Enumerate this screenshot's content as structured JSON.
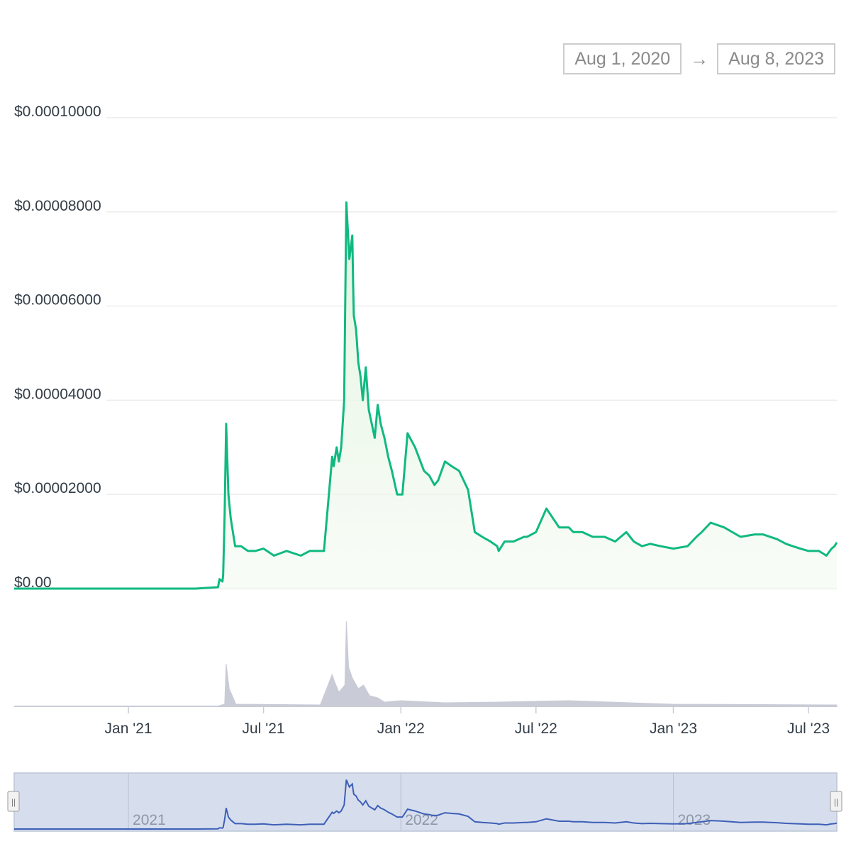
{
  "range": {
    "from": "Aug 1, 2020",
    "arrow": "→",
    "to": "Aug 8, 2023"
  },
  "colors": {
    "price_line": "#10b981",
    "price_fill": "#dff3dc",
    "volume": "#c9ccd6",
    "grid": "#ececec",
    "navigator_bg": "#d6deee",
    "navigator_line": "#3e5fb6"
  },
  "chart_data": {
    "type": "line",
    "y_axis": {
      "min": 0,
      "max": 0.0001,
      "ticks": [
        0,
        2e-05,
        4e-05,
        6e-05,
        8e-05,
        0.0001
      ],
      "tick_labels": [
        "$0.00",
        "$0.00002000",
        "$0.00004000",
        "$0.00006000",
        "$0.00008000",
        "$0.00010000"
      ]
    },
    "x_axis": {
      "range": [
        "2020-08-01",
        "2023-08-08"
      ],
      "ticks": [
        "2021-01-01",
        "2021-07-01",
        "2022-01-01",
        "2022-07-01",
        "2023-01-01",
        "2023-07-01"
      ],
      "tick_labels": [
        "Jan '21",
        "Jul '21",
        "Jan '22",
        "Jul '22",
        "Jan '23",
        "Jul '23"
      ]
    },
    "grid": true,
    "series": [
      {
        "type": "area",
        "x": [
          "2020-08-01",
          "2020-10-01",
          "2021-01-01",
          "2021-04-01",
          "2021-05-01",
          "2021-05-03",
          "2021-05-07",
          "2021-05-08",
          "2021-05-10",
          "2021-05-12",
          "2021-05-15",
          "2021-05-18",
          "2021-05-21",
          "2021-05-24",
          "2021-06-01",
          "2021-06-10",
          "2021-06-20",
          "2021-07-01",
          "2021-07-15",
          "2021-08-01",
          "2021-08-20",
          "2021-09-01",
          "2021-09-20",
          "2021-10-01",
          "2021-10-03",
          "2021-10-07",
          "2021-10-10",
          "2021-10-13",
          "2021-10-17",
          "2021-10-20",
          "2021-10-24",
          "2021-10-28",
          "2021-10-29",
          "2021-10-30",
          "2021-11-02",
          "2021-11-05",
          "2021-11-08",
          "2021-11-11",
          "2021-11-15",
          "2021-11-19",
          "2021-11-23",
          "2021-11-27",
          "2021-12-01",
          "2021-12-05",
          "2021-12-10",
          "2021-12-15",
          "2021-12-20",
          "2021-12-27",
          "2022-01-03",
          "2022-01-10",
          "2022-01-20",
          "2022-02-01",
          "2022-02-08",
          "2022-02-15",
          "2022-02-20",
          "2022-03-01",
          "2022-03-10",
          "2022-03-20",
          "2022-04-01",
          "2022-04-10",
          "2022-04-20",
          "2022-05-01",
          "2022-05-10",
          "2022-05-12",
          "2022-05-20",
          "2022-06-01",
          "2022-06-15",
          "2022-06-19",
          "2022-07-01",
          "2022-07-15",
          "2022-08-01",
          "2022-08-14",
          "2022-08-20",
          "2022-09-01",
          "2022-09-15",
          "2022-10-01",
          "2022-10-15",
          "2022-10-30",
          "2022-11-09",
          "2022-11-20",
          "2022-12-01",
          "2022-12-15",
          "2023-01-01",
          "2023-01-20",
          "2023-02-01",
          "2023-02-08",
          "2023-02-20",
          "2023-03-10",
          "2023-04-01",
          "2023-04-20",
          "2023-05-01",
          "2023-05-20",
          "2023-06-01",
          "2023-06-10",
          "2023-06-20",
          "2023-07-01",
          "2023-07-15",
          "2023-07-25",
          "2023-08-01",
          "2023-08-05",
          "2023-08-08"
        ],
        "y": [
          0,
          0,
          0,
          0,
          3e-07,
          2e-06,
          1.5e-06,
          3e-06,
          1.6e-05,
          3.5e-05,
          2e-05,
          1.5e-05,
          1.2e-05,
          9e-06,
          9e-06,
          8e-06,
          8e-06,
          8.5e-06,
          7e-06,
          8e-06,
          7e-06,
          8e-06,
          8e-06,
          2.8e-05,
          2.6e-05,
          3e-05,
          2.7e-05,
          3e-05,
          4e-05,
          8.2e-05,
          7e-05,
          7.5e-05,
          6.5e-05,
          5.8e-05,
          5.5e-05,
          4.8e-05,
          4.5e-05,
          4e-05,
          4.7e-05,
          3.8e-05,
          3.5e-05,
          3.2e-05,
          3.9e-05,
          3.5e-05,
          3.2e-05,
          2.8e-05,
          2.5e-05,
          2e-05,
          2e-05,
          3.3e-05,
          3e-05,
          2.5e-05,
          2.4e-05,
          2.2e-05,
          2.3e-05,
          2.7e-05,
          2.6e-05,
          2.5e-05,
          2.1e-05,
          1.2e-05,
          1.1e-05,
          1e-05,
          9e-06,
          8e-06,
          1e-05,
          1e-05,
          1.1e-05,
          1.1e-05,
          1.2e-05,
          1.7e-05,
          1.3e-05,
          1.3e-05,
          1.2e-05,
          1.2e-05,
          1.1e-05,
          1.1e-05,
          1e-05,
          1.2e-05,
          1e-05,
          9e-06,
          9.5e-06,
          9e-06,
          8.5e-06,
          9e-06,
          1.1e-05,
          1.2e-05,
          1.4e-05,
          1.3e-05,
          1.1e-05,
          1.15e-05,
          1.15e-05,
          1.05e-05,
          9.5e-06,
          9e-06,
          8.5e-06,
          8e-06,
          8e-06,
          7e-06,
          8.5e-06,
          9e-06,
          9.8e-06
        ]
      }
    ]
  },
  "volume": {
    "x": [
      "2020-08-01",
      "2021-05-01",
      "2021-05-10",
      "2021-05-12",
      "2021-05-16",
      "2021-05-25",
      "2021-09-15",
      "2021-10-01",
      "2021-10-04",
      "2021-10-10",
      "2021-10-18",
      "2021-10-20",
      "2021-10-23",
      "2021-10-28",
      "2021-11-05",
      "2021-11-12",
      "2021-11-20",
      "2021-12-01",
      "2021-12-10",
      "2022-01-01",
      "2022-03-01",
      "2022-05-12",
      "2022-08-14",
      "2023-01-01",
      "2023-08-08"
    ],
    "y": [
      0,
      0.5,
      3,
      60,
      25,
      3,
      2,
      45,
      35,
      20,
      30,
      120,
      55,
      40,
      25,
      30,
      15,
      12,
      6,
      8,
      5,
      6,
      8,
      3,
      2
    ],
    "max": 120
  },
  "navigator": {
    "labels": [
      "2021",
      "2022",
      "2023"
    ],
    "label_dates": [
      "2021-01-01",
      "2022-01-01",
      "2023-01-01"
    ],
    "handle_glyph": "||"
  }
}
